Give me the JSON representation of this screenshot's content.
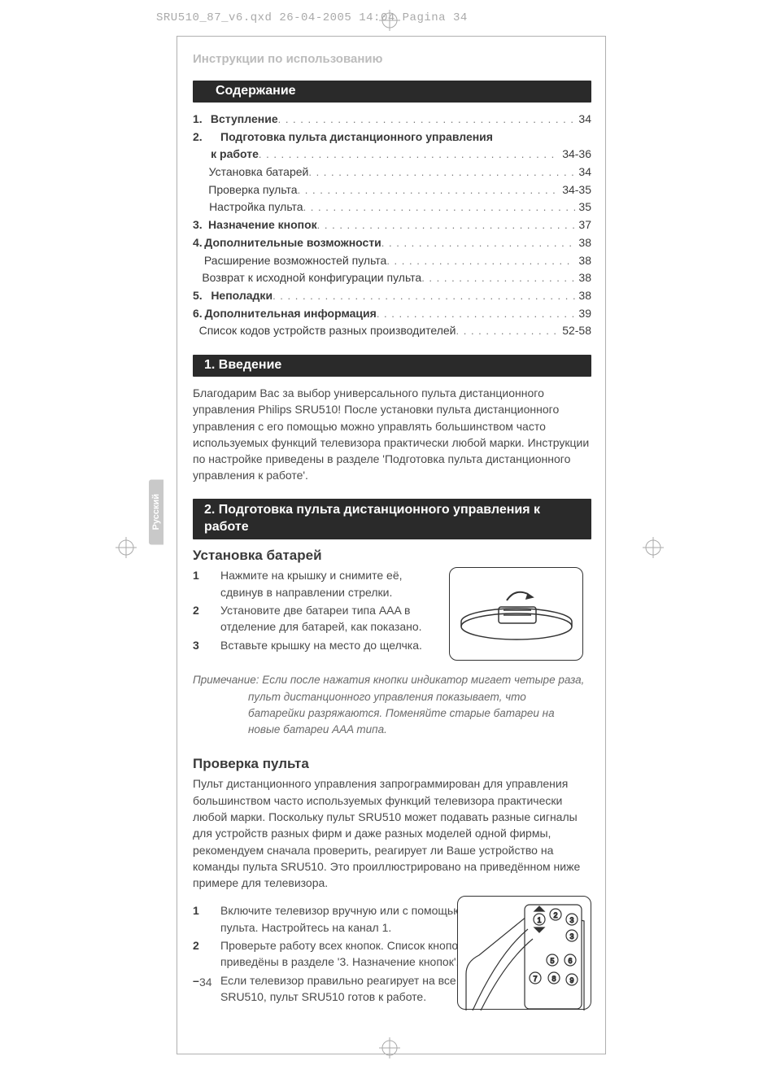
{
  "doc_header": "SRU510_87_v6.qxd  26-04-2005  14:04  Pagina 34",
  "section_label": "Инструкции по использованию",
  "toc_heading": "Содержание",
  "lang_tab": "Русский",
  "toc": [
    {
      "num": "1.",
      "label": "Вступление",
      "page": "34",
      "bold": true
    },
    {
      "num": "2.",
      "label": "Подготовка пульта дистанционного управления",
      "page": "",
      "bold": true,
      "nodots": true
    },
    {
      "num": "",
      "label": "к работе",
      "page": "34-36",
      "bold": true
    },
    {
      "num": "",
      "label": "Установка батарей",
      "page": "34",
      "bold": false
    },
    {
      "num": "",
      "label": "Проверка пульта",
      "page": "34-35",
      "bold": false
    },
    {
      "num": "",
      "label": "Настройка пульта",
      "page": "35",
      "bold": false
    },
    {
      "num": "3.",
      "label": "Назначение кнопок",
      "page": "37",
      "bold": true
    },
    {
      "num": "4.",
      "label": "Дополнительные возможности",
      "page": "38",
      "bold": true
    },
    {
      "num": "",
      "label": "Расширение возможностей пульта",
      "page": "38",
      "bold": false
    },
    {
      "num": "",
      "label": "Возврат к исходной конфигурации пульта",
      "page": "38",
      "bold": false
    },
    {
      "num": "5.",
      "label": "Неполадки",
      "page": "38",
      "bold": true
    },
    {
      "num": "6.",
      "label": "Дополнительная информация",
      "page": "39",
      "bold": true
    },
    {
      "num": "",
      "label": "Список кодов устройств разных производителей",
      "page": "52-58",
      "bold": false
    }
  ],
  "s1_title": "1. Введение",
  "s1_body": "Благодарим Вас за выбор универсального пульта дистанционного управления Philips SRU510! После установки пульта дистанционного управления с его помощью можно управлять большинством часто используемых функций телевизора практически любой марки. Инструкции по настройке приведены в разделе 'Подготовка пульта дистанционного управления к работе'.",
  "s2_title": "2. Подготовка пульта дистанционного управления к работе",
  "s2_sub1": "Установка батарей",
  "s2_steps1": [
    {
      "n": "1",
      "t": "Нажмите на крышку и снимите её, сдвинув в направлении стрелки."
    },
    {
      "n": "2",
      "t": "Установите две батареи типа AAA в отделение для батарей, как показано."
    },
    {
      "n": "3",
      "t": "Вставьте крышку на место до щелчка."
    }
  ],
  "note_lead": "Примечание: Если после нажатия кнопки индикатор мигает четыре раза,",
  "note_cont1": "пульт дистанционного управления показывает, что",
  "note_cont2": "батарейки разряжаются. Поменяйте старые батареи на",
  "note_cont3": "новые батареи AAA типа.",
  "s2_sub2": "Проверка пульта",
  "s2_body2": "Пульт дистанционного управления запрограммирован для управления большинством часто используемых функций телевизора практически любой марки. Поскольку пульт SRU510 может подавать разные сигналы для устройств разных фирм и даже разных моделей одной фирмы, рекомендуем сначала проверить, реагирует ли Ваше устройство на команды пульта SRU510. Это проиллюстрировано на приведённом ниже примере для телевизора.",
  "s2_steps2": [
    {
      "n": "1",
      "t": "Включите телевизор вручную или с помощью его собственного пульта. Настройтесь на канал 1."
    },
    {
      "n": "2",
      "t": "Проверьте работу всех кнопок. Список кнопок и их функции приведёны в разделе '3. Назначение кнопок'."
    },
    {
      "n": "–",
      "t": "Если телевизор правильно реагирует на все команды пульта SRU510, пульт SRU510 готов к работе."
    }
  ],
  "page_number": "34",
  "colors": {
    "title_bg": "#2a2a2a",
    "muted": "#bcbcbc",
    "text": "#4a4a4a"
  }
}
